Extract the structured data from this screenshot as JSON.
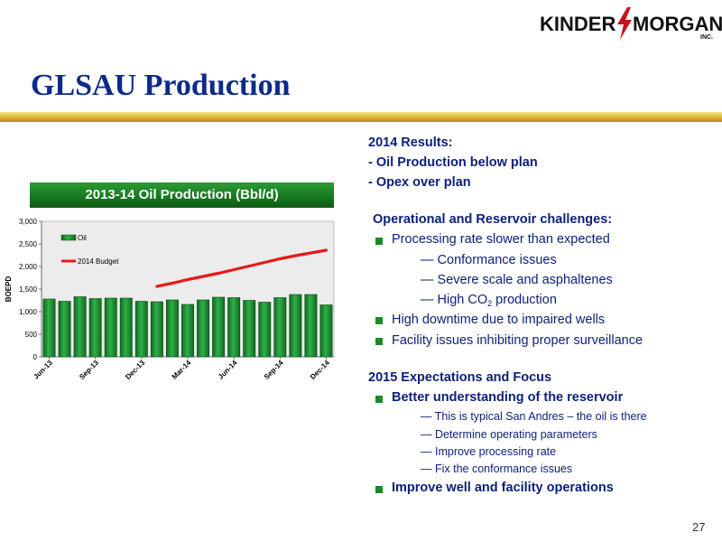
{
  "logo": {
    "text_left": "KINDER",
    "text_right": "MORGAN",
    "sub": "INC."
  },
  "slide_title": "GLSAU Production",
  "page_number": "27",
  "chart_data": {
    "type": "bar",
    "title": "2013-14 Oil Production (Bbl/d)",
    "ylabel": "BOEPD",
    "xlabel": "",
    "ylim": [
      0,
      3000
    ],
    "yticks": [
      "0",
      "500",
      "1,000",
      "1,500",
      "2,000",
      "2,500",
      "3,000"
    ],
    "yticks_values": [
      0,
      500,
      1000,
      1500,
      2000,
      2500,
      3000
    ],
    "categories": [
      "Jun-13",
      "Jul-13",
      "Aug-13",
      "Sep-13",
      "Oct-13",
      "Nov-13",
      "Dec-13",
      "Jan-14",
      "Feb-14",
      "Mar-14",
      "Apr-14",
      "May-14",
      "Jun-14",
      "Jul-14",
      "Aug-14",
      "Sep-14",
      "Oct-14",
      "Nov-14",
      "Dec-14"
    ],
    "xtick_labels": [
      "Jun-13",
      "Sep-13",
      "Dec-13",
      "Mar-14",
      "Jun-14",
      "Sep-14",
      "Dec-14"
    ],
    "xtick_indices": [
      0,
      3,
      6,
      9,
      12,
      15,
      18
    ],
    "series": [
      {
        "name": "Oil",
        "type": "bar",
        "color": "#1f9a3a",
        "values": [
          1280,
          1230,
          1330,
          1290,
          1300,
          1300,
          1230,
          1220,
          1260,
          1160,
          1260,
          1320,
          1310,
          1250,
          1210,
          1310,
          1380,
          1380,
          1150
        ]
      },
      {
        "name": "2014 Budget",
        "type": "line",
        "color": "#e81818",
        "values": [
          null,
          null,
          null,
          null,
          null,
          null,
          null,
          1560,
          1630,
          1710,
          1780,
          1850,
          1930,
          2010,
          2090,
          2170,
          2240,
          2300,
          2360
        ]
      }
    ],
    "legend_position": "top-left",
    "grid": false
  },
  "results": {
    "heading": "2014 Results:",
    "items": [
      "- Oil Production below plan",
      "- Opex over plan"
    ]
  },
  "challenges": {
    "heading": "Operational and Reservoir challenges:",
    "bullet1": "Processing rate slower than expected",
    "sub1": "Conformance issues",
    "sub2": "Severe scale and asphaltenes",
    "sub3_pre": "High CO",
    "sub3_sub": "2",
    "sub3_post": " production",
    "bullet2": "High downtime due to impaired wells",
    "bullet3": "Facility issues inhibiting proper surveillance"
  },
  "expectations": {
    "heading": "2015 Expectations and Focus",
    "bullet1": "Better understanding of the reservoir",
    "sub1": "This is typical San Andres – the oil is there",
    "sub2": "Determine operating parameters",
    "sub3": "Improve processing rate",
    "sub4": "Fix the conformance issues",
    "bullet2": "Improve well and facility operations"
  },
  "dash": "—"
}
